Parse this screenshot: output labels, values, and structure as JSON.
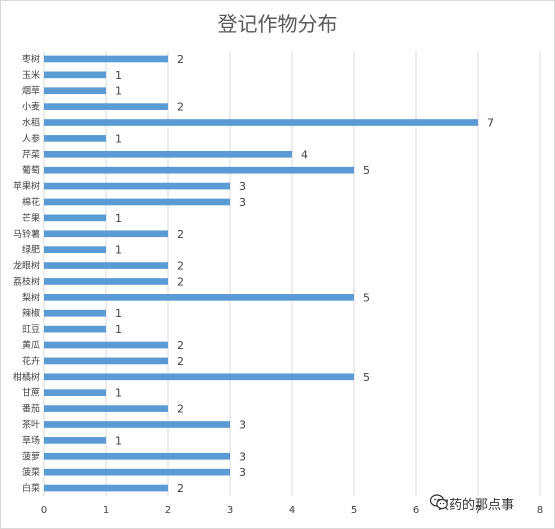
{
  "chart_data": {
    "type": "bar",
    "orientation": "horizontal",
    "title": "登记作物分布",
    "xlabel": "",
    "ylabel": "",
    "xlim": [
      0,
      8
    ],
    "xticks": [
      0,
      1,
      2,
      3,
      4,
      5,
      6,
      7,
      8
    ],
    "grid": true,
    "categories": [
      "枣树",
      "玉米",
      "烟草",
      "小麦",
      "水稻",
      "人参",
      "芹菜",
      "葡萄",
      "苹果树",
      "棉花",
      "芒果",
      "马铃薯",
      "绿肥",
      "龙眼树",
      "荔枝树",
      "梨树",
      "辣椒",
      "豇豆",
      "黄瓜",
      "花卉",
      "柑橘树",
      "甘蔗",
      "番茄",
      "茶叶",
      "草场",
      "菠萝",
      "菠菜",
      "白菜"
    ],
    "values": [
      2,
      1,
      1,
      2,
      7,
      1,
      4,
      5,
      3,
      3,
      1,
      2,
      1,
      2,
      2,
      5,
      1,
      1,
      2,
      2,
      5,
      1,
      2,
      3,
      1,
      3,
      3,
      2
    ],
    "bar_color": "#5b9bd5"
  },
  "watermark": {
    "text": "农药的那点事",
    "icon": "wechat-icon"
  }
}
